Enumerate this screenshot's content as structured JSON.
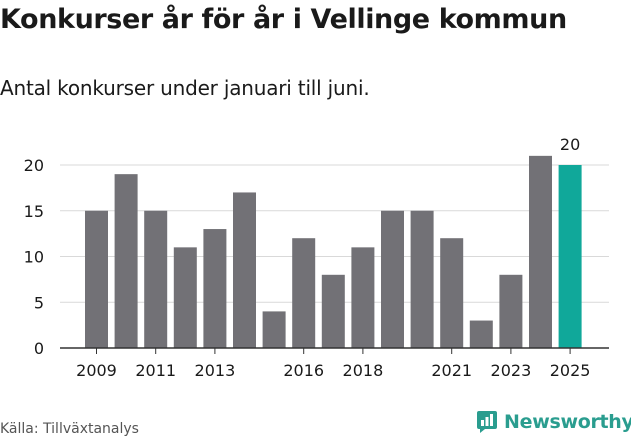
{
  "header": {
    "title": "Konkurser år för år i Vellinge kommun",
    "subtitle": "Antal konkurser under januari till juni."
  },
  "footer": {
    "source": "Källa: Tillväxtanalys",
    "brand": "Newsworthy"
  },
  "colors": {
    "bar": "#727176",
    "highlight": "#10a89a",
    "brand": "#2a9d8f",
    "grid": "#d9d9d9",
    "axis": "#333333"
  },
  "chart_data": {
    "type": "bar",
    "categories": [
      "2009",
      "2010",
      "2011",
      "2012",
      "2013",
      "2014",
      "2015",
      "2016",
      "2017",
      "2018",
      "2019",
      "2020",
      "2021",
      "2022",
      "2023",
      "2024",
      "2025"
    ],
    "values": [
      15,
      19,
      15,
      11,
      13,
      17,
      4,
      12,
      8,
      11,
      15,
      15,
      12,
      3,
      8,
      21,
      20
    ],
    "x_tick_labels": [
      "2009",
      "2011",
      "2013",
      "2016",
      "2018",
      "2021",
      "2023",
      "2025"
    ],
    "y_ticks": [
      0,
      5,
      10,
      15,
      20
    ],
    "ylim": [
      0,
      22
    ],
    "highlight_category": "2025",
    "highlight_label": "20",
    "grid": true
  }
}
